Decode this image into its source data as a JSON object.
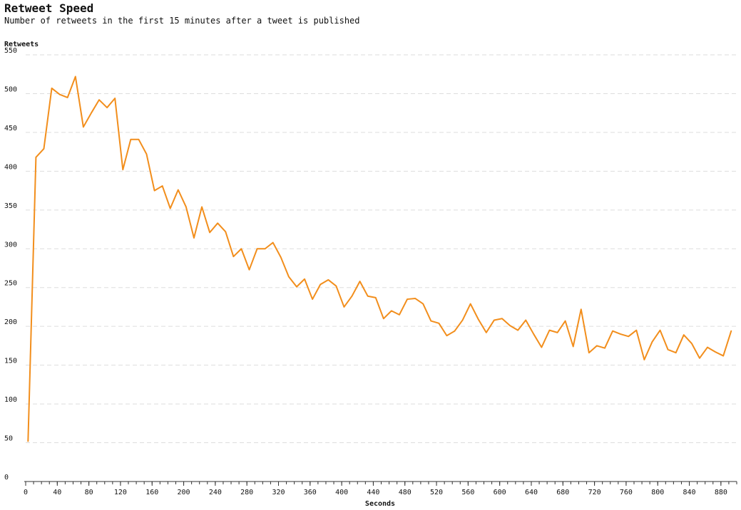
{
  "title": "Retweet Speed",
  "subtitle": "Number of retweets in the first 15 minutes after a tweet is published",
  "colors": {
    "line": "#f28e1c",
    "grid": "#dddddd",
    "axis": "#333333",
    "background": "#ffffff"
  },
  "chart_data": {
    "type": "line",
    "title": "Retweet Speed",
    "subtitle": "Number of retweets in the first 15 minutes after a tweet is published",
    "xlabel": "Seconds",
    "ylabel": "Retweets",
    "xlim": [
      0,
      900
    ],
    "ylim": [
      0,
      550
    ],
    "x_ticks": [
      0,
      40,
      80,
      120,
      160,
      200,
      240,
      280,
      320,
      360,
      400,
      440,
      480,
      520,
      560,
      600,
      640,
      680,
      720,
      760,
      800,
      840,
      880
    ],
    "y_ticks": [
      0,
      50,
      100,
      150,
      200,
      250,
      300,
      350,
      400,
      450,
      500,
      550
    ],
    "x_minor_step": 10,
    "grid": true,
    "grid_axis": "y",
    "legend": false,
    "series": [
      {
        "x": [
          3,
          13,
          23,
          33,
          43,
          53,
          63,
          73,
          83,
          93,
          103,
          113,
          123,
          133,
          143,
          153,
          163,
          173,
          183,
          193,
          203,
          213,
          223,
          233,
          243,
          253,
          263,
          273,
          283,
          293,
          303,
          313,
          323,
          333,
          343,
          353,
          363,
          373,
          383,
          393,
          403,
          413,
          423,
          433,
          443,
          453,
          463,
          473,
          483,
          493,
          503,
          513,
          523,
          533,
          543,
          553,
          563,
          573,
          583,
          593,
          603,
          613,
          623,
          633,
          643,
          653,
          663,
          673,
          683,
          693,
          703,
          713,
          723,
          733,
          743,
          753,
          763,
          773,
          783,
          793,
          803,
          813,
          823,
          833,
          843,
          853,
          863,
          873,
          883,
          893
        ],
        "values": [
          52,
          418,
          429,
          507,
          499,
          495,
          522,
          457,
          475,
          492,
          482,
          494,
          402,
          441,
          441,
          422,
          375,
          381,
          352,
          376,
          354,
          314,
          354,
          321,
          333,
          322,
          290,
          300,
          273,
          300,
          300,
          308,
          289,
          264,
          251,
          261,
          235,
          254,
          260,
          252,
          225,
          239,
          258,
          239,
          237,
          210,
          220,
          215,
          235,
          236,
          229,
          207,
          204,
          188,
          194,
          208,
          229,
          209,
          192,
          208,
          210,
          201,
          195,
          208,
          190,
          173,
          195,
          192,
          207,
          174,
          222,
          166,
          175,
          172,
          194,
          190,
          187,
          195,
          157,
          180,
          195,
          170,
          166,
          189,
          178,
          159,
          173,
          167,
          162,
          194
        ]
      }
    ]
  }
}
